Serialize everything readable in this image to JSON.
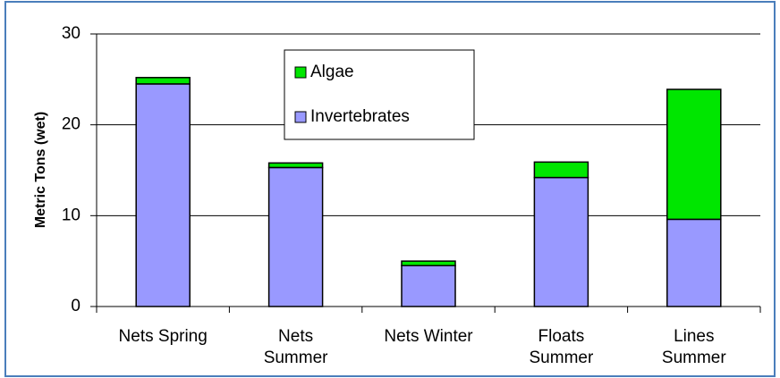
{
  "chart_data": {
    "type": "stacked-bar",
    "ylabel": "Metric Tons (wet)",
    "categories": [
      [
        "Nets Spring"
      ],
      [
        "Nets",
        "Summer"
      ],
      [
        "Nets Winter"
      ],
      [
        "Floats",
        "Summer"
      ],
      [
        "Lines",
        "Summer"
      ]
    ],
    "series": [
      {
        "name": "Invertebrates",
        "color": "#9999ff",
        "values": [
          24.5,
          15.3,
          4.5,
          14.2,
          9.6
        ]
      },
      {
        "name": "Algae",
        "color": "#00e600",
        "values": [
          0.7,
          0.5,
          0.5,
          1.7,
          14.3
        ]
      }
    ],
    "ylim": [
      0,
      30
    ],
    "yticks": [
      0,
      10,
      20,
      30
    ],
    "grid": true
  }
}
